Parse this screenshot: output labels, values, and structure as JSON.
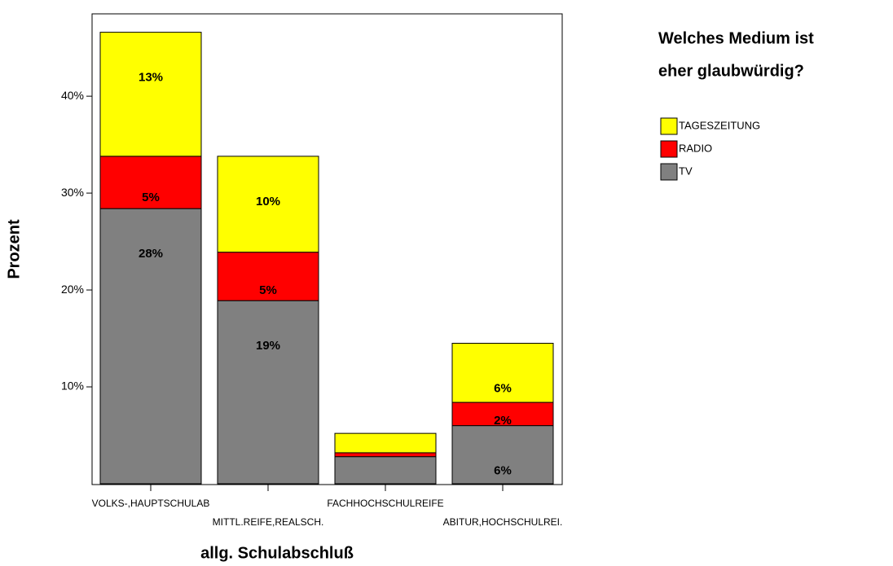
{
  "chart_data": {
    "type": "stacked_bar",
    "x_label": "allg. Schulabschluß",
    "y_label": "Prozent",
    "legend_title": [
      "Welches Medium ist",
      "eher glaubwürdig?"
    ],
    "categories": [
      "VOLKS-,HAUPTSCHULAB",
      "MITTL.REIFE,REALSCH.",
      "FACHHOCHSCHULREIFE",
      "ABITUR,HOCHSCHULREI."
    ],
    "series": [
      {
        "name": "TV",
        "color": "#808080",
        "values": [
          28.4,
          18.9,
          2.8,
          6.0
        ],
        "value_labels": [
          "28%",
          "19%",
          null,
          "6%"
        ]
      },
      {
        "name": "RADIO",
        "color": "#ff0000",
        "values": [
          5.4,
          5.0,
          0.4,
          2.4
        ],
        "value_labels": [
          "5%",
          "5%",
          null,
          "2%"
        ]
      },
      {
        "name": "TAGESZEITUNG",
        "color": "#ffff00",
        "values": [
          12.8,
          9.9,
          2.0,
          6.1
        ],
        "value_labels": [
          "13%",
          "10%",
          null,
          "6%"
        ]
      }
    ],
    "ylim": [
      0,
      48.5
    ],
    "yticks": [
      {
        "value": 10,
        "label": "10%"
      },
      {
        "value": 20,
        "label": "20%"
      },
      {
        "value": 30,
        "label": "30%"
      },
      {
        "value": 40,
        "label": "40%"
      }
    ],
    "legend_position": "right"
  }
}
